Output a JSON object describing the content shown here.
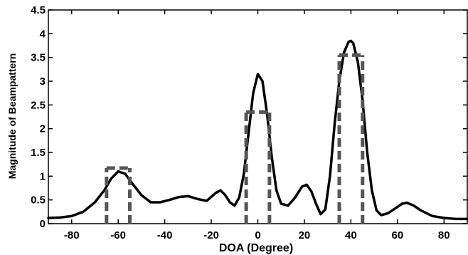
{
  "chart_data": {
    "type": "line",
    "title": "",
    "xlabel": "DOA (Degree)",
    "ylabel": "Magnitude of Beampattern",
    "xlim": [
      -90,
      90
    ],
    "ylim": [
      0,
      4.5
    ],
    "x_ticks": [
      -80,
      -60,
      -40,
      -20,
      0,
      20,
      40,
      60,
      80
    ],
    "y_ticks": [
      0,
      0.5,
      1,
      1.5,
      2,
      2.5,
      3,
      3.5,
      4,
      4.5
    ],
    "grid": false,
    "legend": "none",
    "series": [
      {
        "style": "solid",
        "color": "#000000",
        "x": [
          -90,
          -85,
          -80,
          -75,
          -70,
          -66,
          -63,
          -60,
          -57,
          -54,
          -50,
          -46,
          -42,
          -38,
          -34,
          -30,
          -26,
          -22,
          -18,
          -16,
          -14,
          -12,
          -10,
          -8,
          -6,
          -4,
          -2,
          0,
          2,
          4,
          6,
          8,
          10,
          13,
          16,
          19,
          21,
          23,
          25,
          27,
          29,
          31,
          33,
          35,
          37,
          39,
          40,
          41,
          43,
          45,
          47,
          49,
          51,
          53,
          56,
          59,
          62,
          64,
          67,
          70,
          75,
          80,
          85,
          90
        ],
        "y": [
          0.12,
          0.13,
          0.16,
          0.25,
          0.45,
          0.7,
          0.95,
          1.1,
          1.05,
          0.85,
          0.6,
          0.45,
          0.45,
          0.5,
          0.56,
          0.58,
          0.52,
          0.48,
          0.65,
          0.7,
          0.6,
          0.45,
          0.38,
          0.55,
          1.05,
          1.9,
          2.75,
          3.15,
          3.0,
          2.3,
          1.4,
          0.7,
          0.42,
          0.38,
          0.55,
          0.78,
          0.82,
          0.68,
          0.42,
          0.2,
          0.3,
          1.0,
          2.1,
          3.0,
          3.6,
          3.83,
          3.85,
          3.8,
          3.4,
          2.6,
          1.5,
          0.7,
          0.28,
          0.18,
          0.22,
          0.32,
          0.42,
          0.44,
          0.38,
          0.28,
          0.16,
          0.12,
          0.1,
          0.1
        ]
      },
      {
        "style": "dashed",
        "color": "#555555",
        "segments": [
          {
            "x0": -65,
            "x1": -55,
            "y": 1.17
          },
          {
            "x0": -5,
            "x1": 5,
            "y": 2.35
          },
          {
            "x0": 35,
            "x1": 45,
            "y": 3.55
          }
        ]
      }
    ]
  }
}
